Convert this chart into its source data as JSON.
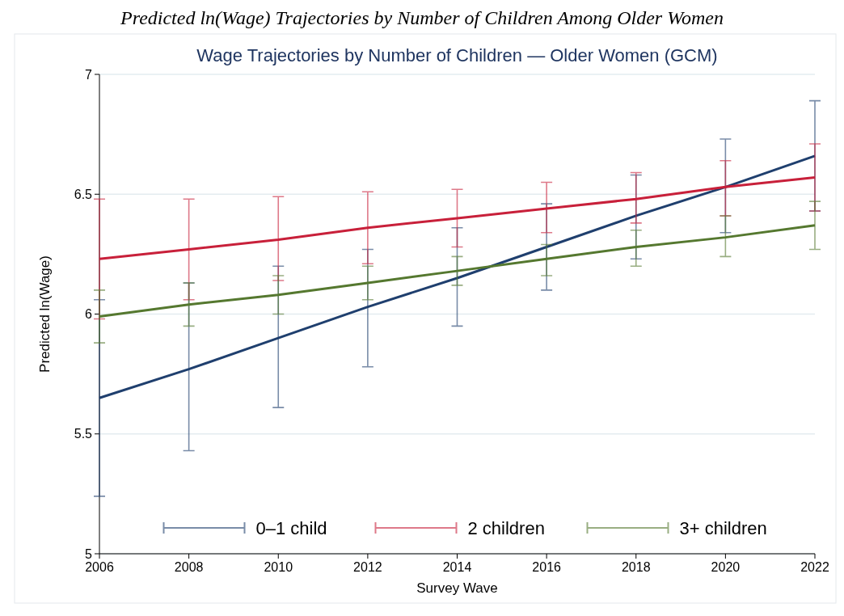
{
  "chart_data": {
    "type": "line",
    "title": "Predicted ln(Wage) Trajectories by Number of Children Among Older Women",
    "subtitle": "Wage Trajectories by Number of Children — Older Women (GCM)",
    "xlabel": "Survey Wave",
    "ylabel": "Predicted ln(Wage)",
    "x": [
      2006,
      2008,
      2010,
      2012,
      2014,
      2016,
      2018,
      2020,
      2022
    ],
    "series": [
      {
        "name": "0–1 child",
        "color": "#1f3f6e",
        "values": [
          5.65,
          5.77,
          5.9,
          6.03,
          6.15,
          6.28,
          6.41,
          6.53,
          6.66
        ],
        "errors": [
          [
            5.24,
            6.06
          ],
          [
            5.43,
            6.13
          ],
          [
            5.61,
            6.2
          ],
          [
            5.78,
            6.27
          ],
          [
            5.95,
            6.36
          ],
          [
            6.1,
            6.46
          ],
          [
            6.23,
            6.58
          ],
          [
            6.34,
            6.73
          ],
          [
            6.43,
            6.89
          ]
        ]
      },
      {
        "name": "2 children",
        "color": "#c8203a",
        "values": [
          6.23,
          6.27,
          6.31,
          6.36,
          6.4,
          6.44,
          6.48,
          6.53,
          6.57
        ],
        "errors": [
          [
            5.98,
            6.48
          ],
          [
            6.06,
            6.48
          ],
          [
            6.14,
            6.49
          ],
          [
            6.21,
            6.51
          ],
          [
            6.28,
            6.52
          ],
          [
            6.34,
            6.55
          ],
          [
            6.38,
            6.59
          ],
          [
            6.41,
            6.64
          ],
          [
            6.43,
            6.71
          ]
        ]
      },
      {
        "name": "3+ children",
        "color": "#55782f",
        "values": [
          5.99,
          6.04,
          6.08,
          6.13,
          6.18,
          6.23,
          6.28,
          6.32,
          6.37
        ],
        "errors": [
          [
            5.88,
            6.1
          ],
          [
            5.95,
            6.13
          ],
          [
            6.0,
            6.16
          ],
          [
            6.06,
            6.2
          ],
          [
            6.12,
            6.24
          ],
          [
            6.16,
            6.29
          ],
          [
            6.2,
            6.35
          ],
          [
            6.24,
            6.41
          ],
          [
            6.27,
            6.47
          ]
        ]
      }
    ],
    "xlim": [
      2006,
      2022
    ],
    "xticks": [
      2006,
      2008,
      2010,
      2012,
      2014,
      2016,
      2018,
      2020,
      2022
    ],
    "ylim": [
      5,
      7
    ],
    "yticks": [
      5,
      5.5,
      6,
      6.5,
      7
    ],
    "grid": "y",
    "legend": "bottom"
  }
}
